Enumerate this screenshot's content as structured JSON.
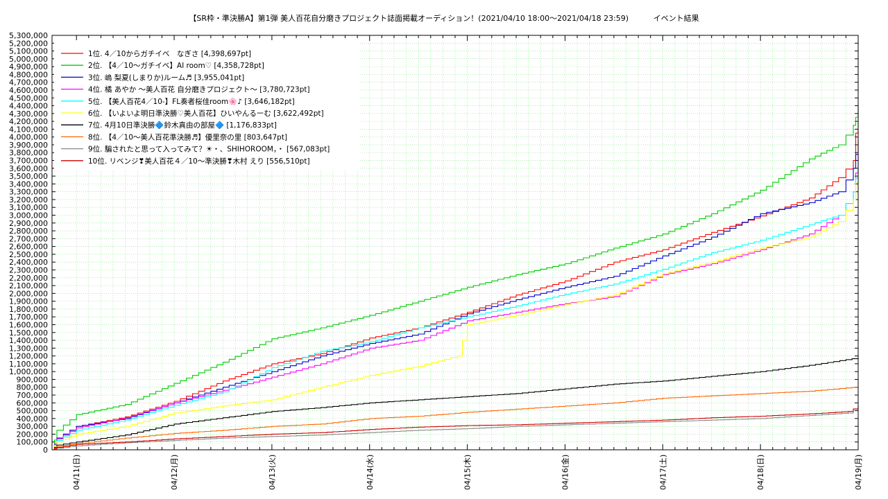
{
  "chart_data": {
    "type": "line",
    "title": "【SR枠・準決勝A】第1弾 美人百花自分磨きプロジェクト誌面掲載オーディション！(2021/04/10 18:00～2021/04/18 23:59)",
    "subtitle": "イベント結果",
    "ylim": [
      0,
      5300000
    ],
    "ystep": 100000,
    "y_tick_labels": [
      "0",
      "100,000",
      "200,000",
      "300,000",
      "400,000",
      "500,000",
      "600,000",
      "700,000",
      "800,000",
      "900,000",
      "1,000,000",
      "1,100,000",
      "1,200,000",
      "1,300,000",
      "1,400,000",
      "1,500,000",
      "1,600,000",
      "1,700,000",
      "1,800,000",
      "1,900,000",
      "2,000,000",
      "2,100,000",
      "2,200,000",
      "2,300,000",
      "2,400,000",
      "2,500,000",
      "2,600,000",
      "2,700,000",
      "2,800,000",
      "2,900,000",
      "3,000,000",
      "3,100,000",
      "3,200,000",
      "3,300,000",
      "3,400,000",
      "3,500,000",
      "3,600,000",
      "3,700,000",
      "3,800,000",
      "3,900,000",
      "4,000,000",
      "4,100,000",
      "4,200,000",
      "4,300,000",
      "4,400,000",
      "4,500,000",
      "4,600,000",
      "4,700,000",
      "4,800,000",
      "4,900,000",
      "5,000,000",
      "5,100,000",
      "5,200,000",
      "5,300,000"
    ],
    "xlim": [
      -0.25,
      8.0
    ],
    "x_tick_labels": [
      "04/11(日)",
      "04/12(月)",
      "04/13(火)",
      "04/14(水)",
      "04/15(木)",
      "04/16(金)",
      "04/17(土)",
      "04/18(日)",
      "04/19(月)"
    ],
    "grid": true,
    "legend_position": "top-left",
    "series": [
      {
        "name": "1位. 4／10からガチイベ　なぎさ [4,398,697pt]",
        "color": "#ff0000",
        "points": [
          [
            -0.25,
            0
          ],
          [
            -0.2,
            150000
          ],
          [
            0,
            300000
          ],
          [
            0.5,
            420000
          ],
          [
            1.0,
            620000
          ],
          [
            1.5,
            880000
          ],
          [
            2.0,
            1100000
          ],
          [
            2.5,
            1230000
          ],
          [
            3.0,
            1430000
          ],
          [
            3.5,
            1560000
          ],
          [
            4.0,
            1760000
          ],
          [
            4.5,
            1980000
          ],
          [
            5.0,
            2160000
          ],
          [
            5.5,
            2400000
          ],
          [
            6.0,
            2560000
          ],
          [
            6.5,
            2780000
          ],
          [
            7.0,
            2990000
          ],
          [
            7.5,
            3220000
          ],
          [
            7.8,
            3480000
          ],
          [
            7.95,
            3700000
          ],
          [
            8.0,
            4398697
          ]
        ]
      },
      {
        "name": "2位. 【4／10～ガチイベ】AI room♡ [4,358,728pt]",
        "color": "#00cc00",
        "points": [
          [
            -0.25,
            0
          ],
          [
            -0.2,
            250000
          ],
          [
            0,
            450000
          ],
          [
            0.5,
            580000
          ],
          [
            1.0,
            850000
          ],
          [
            1.5,
            1120000
          ],
          [
            2.0,
            1420000
          ],
          [
            2.5,
            1560000
          ],
          [
            3.0,
            1720000
          ],
          [
            3.5,
            1900000
          ],
          [
            4.0,
            2080000
          ],
          [
            4.5,
            2240000
          ],
          [
            5.0,
            2380000
          ],
          [
            5.5,
            2580000
          ],
          [
            6.0,
            2760000
          ],
          [
            6.5,
            3020000
          ],
          [
            7.0,
            3320000
          ],
          [
            7.5,
            3720000
          ],
          [
            7.8,
            3900000
          ],
          [
            7.95,
            4150000
          ],
          [
            8.0,
            4358728
          ]
        ]
      },
      {
        "name": "3位. 嶋 梨夏(しまりか)ルーム♬ [3,955,041pt]",
        "color": "#0000cc",
        "points": [
          [
            -0.25,
            0
          ],
          [
            -0.2,
            150000
          ],
          [
            0,
            300000
          ],
          [
            0.5,
            400000
          ],
          [
            1.0,
            600000
          ],
          [
            1.5,
            800000
          ],
          [
            2.0,
            1000000
          ],
          [
            2.5,
            1200000
          ],
          [
            3.0,
            1360000
          ],
          [
            3.5,
            1480000
          ],
          [
            4.0,
            1740000
          ],
          [
            4.5,
            1920000
          ],
          [
            5.0,
            2080000
          ],
          [
            5.5,
            2220000
          ],
          [
            6.0,
            2480000
          ],
          [
            6.5,
            2720000
          ],
          [
            7.0,
            3020000
          ],
          [
            7.5,
            3160000
          ],
          [
            7.8,
            3300000
          ],
          [
            7.95,
            3600000
          ],
          [
            8.0,
            3955041
          ]
        ]
      },
      {
        "name": "4位. 橘 あやか 〜美人百花 自分磨きプロジェクト〜 [3,780,723pt]",
        "color": "#ff00ff",
        "points": [
          [
            -0.25,
            0
          ],
          [
            -0.2,
            140000
          ],
          [
            0,
            280000
          ],
          [
            0.5,
            410000
          ],
          [
            1.0,
            600000
          ],
          [
            1.5,
            760000
          ],
          [
            2.0,
            930000
          ],
          [
            2.5,
            1100000
          ],
          [
            3.0,
            1300000
          ],
          [
            3.5,
            1400000
          ],
          [
            4.0,
            1650000
          ],
          [
            4.5,
            1760000
          ],
          [
            5.0,
            1870000
          ],
          [
            5.5,
            1960000
          ],
          [
            6.0,
            2240000
          ],
          [
            6.5,
            2380000
          ],
          [
            7.0,
            2560000
          ],
          [
            7.5,
            2760000
          ],
          [
            7.8,
            3000000
          ],
          [
            7.95,
            3300000
          ],
          [
            8.0,
            3780723
          ]
        ]
      },
      {
        "name": "5位. 【美人百花4／10-】FL奏者桜佳room🌸♪ [3,646,182pt]",
        "color": "#00ffff",
        "points": [
          [
            -0.25,
            0
          ],
          [
            -0.2,
            120000
          ],
          [
            0,
            250000
          ],
          [
            0.5,
            380000
          ],
          [
            1.0,
            570000
          ],
          [
            1.5,
            740000
          ],
          [
            2.0,
            1050000
          ],
          [
            2.5,
            1260000
          ],
          [
            3.0,
            1380000
          ],
          [
            3.5,
            1560000
          ],
          [
            4.0,
            1700000
          ],
          [
            4.5,
            1840000
          ],
          [
            5.0,
            1990000
          ],
          [
            5.5,
            2120000
          ],
          [
            6.0,
            2310000
          ],
          [
            6.5,
            2520000
          ],
          [
            7.0,
            2680000
          ],
          [
            7.5,
            2880000
          ],
          [
            7.8,
            3000000
          ],
          [
            7.95,
            3300000
          ],
          [
            8.0,
            3646182
          ]
        ]
      },
      {
        "name": "6位. 【いよいよ明日準決勝♡美人百花】ひいやんるーむ [3,622,492pt]",
        "color": "#ffff00",
        "points": [
          [
            -0.25,
            0
          ],
          [
            -0.2,
            100000
          ],
          [
            0,
            200000
          ],
          [
            0.5,
            300000
          ],
          [
            1.0,
            470000
          ],
          [
            1.5,
            560000
          ],
          [
            2.0,
            640000
          ],
          [
            2.5,
            800000
          ],
          [
            3.0,
            950000
          ],
          [
            3.5,
            1070000
          ],
          [
            3.9,
            1200000
          ],
          [
            4.0,
            1600000
          ],
          [
            4.5,
            1720000
          ],
          [
            5.0,
            1860000
          ],
          [
            5.5,
            1980000
          ],
          [
            6.0,
            2250000
          ],
          [
            6.5,
            2400000
          ],
          [
            7.0,
            2580000
          ],
          [
            7.5,
            2720000
          ],
          [
            7.8,
            2920000
          ],
          [
            7.95,
            3200000
          ],
          [
            8.0,
            3622492
          ]
        ]
      },
      {
        "name": "7位. 4月10日準決勝🔷鈴木真由の部屋🔷 [1,176,833pt]",
        "color": "#000000",
        "points": [
          [
            -0.25,
            0
          ],
          [
            -0.2,
            60000
          ],
          [
            0,
            100000
          ],
          [
            0.5,
            190000
          ],
          [
            1.0,
            330000
          ],
          [
            1.5,
            410000
          ],
          [
            2.0,
            490000
          ],
          [
            2.5,
            540000
          ],
          [
            3.0,
            600000
          ],
          [
            3.5,
            640000
          ],
          [
            4.0,
            680000
          ],
          [
            4.5,
            720000
          ],
          [
            5.0,
            780000
          ],
          [
            5.5,
            840000
          ],
          [
            6.0,
            880000
          ],
          [
            6.5,
            940000
          ],
          [
            7.0,
            1000000
          ],
          [
            7.5,
            1080000
          ],
          [
            8.0,
            1176833
          ]
        ]
      },
      {
        "name": "8位. 【4／10～美人百花準決勝♬】優里奈の里 [803,647pt]",
        "color": "#ff6600",
        "points": [
          [
            -0.25,
            0
          ],
          [
            -0.2,
            40000
          ],
          [
            0,
            80000
          ],
          [
            0.5,
            150000
          ],
          [
            1.0,
            210000
          ],
          [
            1.5,
            250000
          ],
          [
            2.0,
            300000
          ],
          [
            2.5,
            330000
          ],
          [
            3.0,
            400000
          ],
          [
            3.5,
            430000
          ],
          [
            4.0,
            480000
          ],
          [
            4.5,
            520000
          ],
          [
            5.0,
            560000
          ],
          [
            5.5,
            600000
          ],
          [
            6.0,
            660000
          ],
          [
            6.5,
            690000
          ],
          [
            7.0,
            720000
          ],
          [
            7.5,
            750000
          ],
          [
            8.0,
            803647
          ]
        ]
      },
      {
        "name": "9位. 騙されたと思って入ってみて？☀・、SHIHOROOM，・ [567,083pt]",
        "color": "#888888",
        "points": [
          [
            -0.25,
            0
          ],
          [
            -0.2,
            20000
          ],
          [
            0,
            50000
          ],
          [
            0.5,
            90000
          ],
          [
            1.0,
            120000
          ],
          [
            1.5,
            150000
          ],
          [
            2.0,
            170000
          ],
          [
            2.5,
            190000
          ],
          [
            3.0,
            220000
          ],
          [
            3.5,
            250000
          ],
          [
            4.0,
            270000
          ],
          [
            4.5,
            300000
          ],
          [
            5.0,
            320000
          ],
          [
            5.5,
            340000
          ],
          [
            6.0,
            360000
          ],
          [
            6.5,
            380000
          ],
          [
            7.0,
            400000
          ],
          [
            7.5,
            440000
          ],
          [
            7.9,
            470000
          ],
          [
            8.0,
            567083
          ]
        ]
      },
      {
        "name": "10位. リベンジ❣美人百花４／10〜準決勝❣木村 えり [556,510pt]",
        "color": "#cc0000",
        "points": [
          [
            -0.25,
            0
          ],
          [
            -0.2,
            30000
          ],
          [
            0,
            70000
          ],
          [
            0.5,
            100000
          ],
          [
            1.0,
            140000
          ],
          [
            1.5,
            170000
          ],
          [
            2.0,
            200000
          ],
          [
            2.5,
            220000
          ],
          [
            3.0,
            260000
          ],
          [
            3.5,
            290000
          ],
          [
            4.0,
            310000
          ],
          [
            4.5,
            320000
          ],
          [
            5.0,
            340000
          ],
          [
            5.5,
            360000
          ],
          [
            6.0,
            380000
          ],
          [
            6.5,
            410000
          ],
          [
            7.0,
            430000
          ],
          [
            7.5,
            460000
          ],
          [
            7.9,
            490000
          ],
          [
            8.0,
            556510
          ]
        ]
      }
    ]
  }
}
